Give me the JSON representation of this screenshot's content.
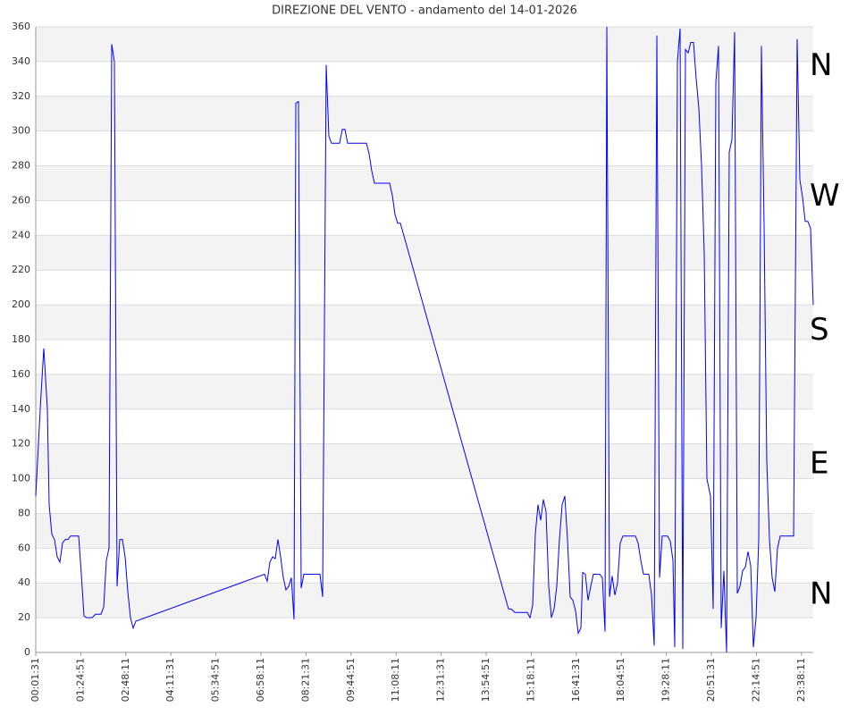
{
  "chart_data": {
    "type": "line",
    "title": "DIREZIONE DEL VENTO - andamento del 14-01-2026",
    "x": [
      91,
      587,
      984,
      1381,
      1579,
      1877,
      2174,
      2472,
      2769,
      3067,
      3365,
      3662,
      3960,
      4853,
      5151,
      5448,
      5746,
      6341,
      6737,
      7333,
      7630,
      7928,
      8225,
      8523,
      8821,
      9118,
      9416,
      9713,
      10011,
      10309,
      10606,
      10904,
      11201,
      25486,
      25784,
      26081,
      26379,
      26677,
      26974,
      27272,
      27569,
      27867,
      28165,
      28462,
      28760,
      28958,
      29256,
      29553,
      29851,
      31637,
      31934,
      32331,
      32629,
      32926,
      33819,
      34117,
      34414,
      34712,
      36795,
      37093,
      37390,
      37688,
      39374,
      39672,
      39969,
      40267,
      40565,
      52568,
      52865,
      53262,
      54651,
      54949,
      55246,
      55544,
      55841,
      56139,
      56437,
      56734,
      57032,
      57329,
      57627,
      57925,
      58222,
      58520,
      58817,
      59115,
      59413,
      59710,
      60008,
      60305,
      60603,
      60802,
      61099,
      61397,
      61694,
      61992,
      62686,
      62984,
      63281,
      63480,
      63778,
      64075,
      64373,
      64670,
      64968,
      65266,
      66654,
      66952,
      67250,
      67547,
      68142,
      68440,
      68738,
      69035,
      69333,
      69630,
      70226,
      70523,
      70821,
      71019,
      71317,
      71614,
      71912,
      72209,
      72507,
      72805,
      73102,
      73400,
      73697,
      73995,
      74293,
      74590,
      74987,
      75285,
      75582,
      75880,
      76177,
      76475,
      76773,
      77070,
      77368,
      77665,
      77963,
      78261,
      78558,
      78856,
      79153,
      79451,
      79749,
      80046,
      80344,
      80641,
      80939,
      81237,
      81534,
      81832,
      82129,
      82427,
      82725,
      84213,
      84610,
      84908,
      85206,
      85503,
      85801,
      86098,
      86395
    ],
    "series": [
      {
        "color": "#0000ff",
        "values": [
          90,
          140,
          175,
          140,
          85,
          68,
          65,
          55,
          52,
          63,
          65,
          65,
          67,
          67,
          45,
          21,
          20,
          20,
          22,
          22,
          26,
          53,
          60,
          350,
          340,
          38,
          65,
          65,
          55,
          35,
          20,
          14,
          18,
          45,
          41,
          52,
          55,
          54,
          65,
          55,
          43,
          36,
          38,
          43,
          19,
          316,
          317,
          37,
          45,
          45,
          32,
          338,
          297,
          293,
          293,
          301,
          301,
          293,
          293,
          287,
          277,
          270,
          270,
          263,
          252,
          247,
          247,
          25,
          25,
          23,
          23,
          20,
          27,
          68,
          85,
          76,
          88,
          81,
          38,
          20,
          25,
          38,
          65,
          85,
          90,
          65,
          32,
          30,
          24,
          11,
          14,
          46,
          45,
          30,
          38,
          45,
          45,
          43,
          12,
          360,
          32,
          44,
          33,
          40,
          63,
          67,
          67,
          63,
          53,
          45,
          45,
          33,
          4,
          355,
          43,
          67,
          67,
          64,
          53,
          3,
          340,
          359,
          2,
          347,
          345,
          351,
          351,
          330,
          313,
          280,
          230,
          100,
          90,
          25,
          328,
          349,
          14,
          47,
          0,
          288,
          295,
          357,
          34,
          38,
          47,
          49,
          58,
          50,
          3,
          20,
          65,
          349,
          245,
          110,
          65,
          43,
          35,
          60,
          67,
          67,
          353,
          272,
          262,
          248,
          248,
          244,
          200
        ]
      }
    ],
    "xlim": [
      91,
      86395
    ],
    "xticks": [
      {
        "value": 91,
        "label": "00:01:31"
      },
      {
        "value": 5091,
        "label": "01:24:51"
      },
      {
        "value": 10091,
        "label": "02:48:11"
      },
      {
        "value": 15091,
        "label": "04:11:31"
      },
      {
        "value": 20091,
        "label": "05:34:51"
      },
      {
        "value": 25091,
        "label": "06:58:11"
      },
      {
        "value": 30091,
        "label": "08:21:31"
      },
      {
        "value": 35091,
        "label": "09:44:51"
      },
      {
        "value": 40091,
        "label": "11:08:11"
      },
      {
        "value": 45091,
        "label": "12:31:31"
      },
      {
        "value": 50091,
        "label": "13:54:51"
      },
      {
        "value": 55091,
        "label": "15:18:11"
      },
      {
        "value": 60091,
        "label": "16:41:31"
      },
      {
        "value": 65091,
        "label": "18:04:51"
      },
      {
        "value": 70091,
        "label": "19:28:11"
      },
      {
        "value": 75091,
        "label": "20:51:31"
      },
      {
        "value": 80091,
        "label": "22:14:51"
      },
      {
        "value": 85091,
        "label": "23:38:11"
      }
    ],
    "ylim": [
      0,
      360
    ],
    "yticks": [
      0,
      20,
      40,
      60,
      80,
      100,
      120,
      140,
      160,
      180,
      200,
      220,
      240,
      260,
      280,
      300,
      320,
      340,
      360
    ],
    "grid": true,
    "annotations": [
      {
        "text": "N",
        "value": 337
      },
      {
        "text": "W",
        "value": 262
      },
      {
        "text": "S",
        "value": 185
      },
      {
        "text": "E",
        "value": 108
      },
      {
        "text": "N",
        "value": 33
      }
    ]
  }
}
